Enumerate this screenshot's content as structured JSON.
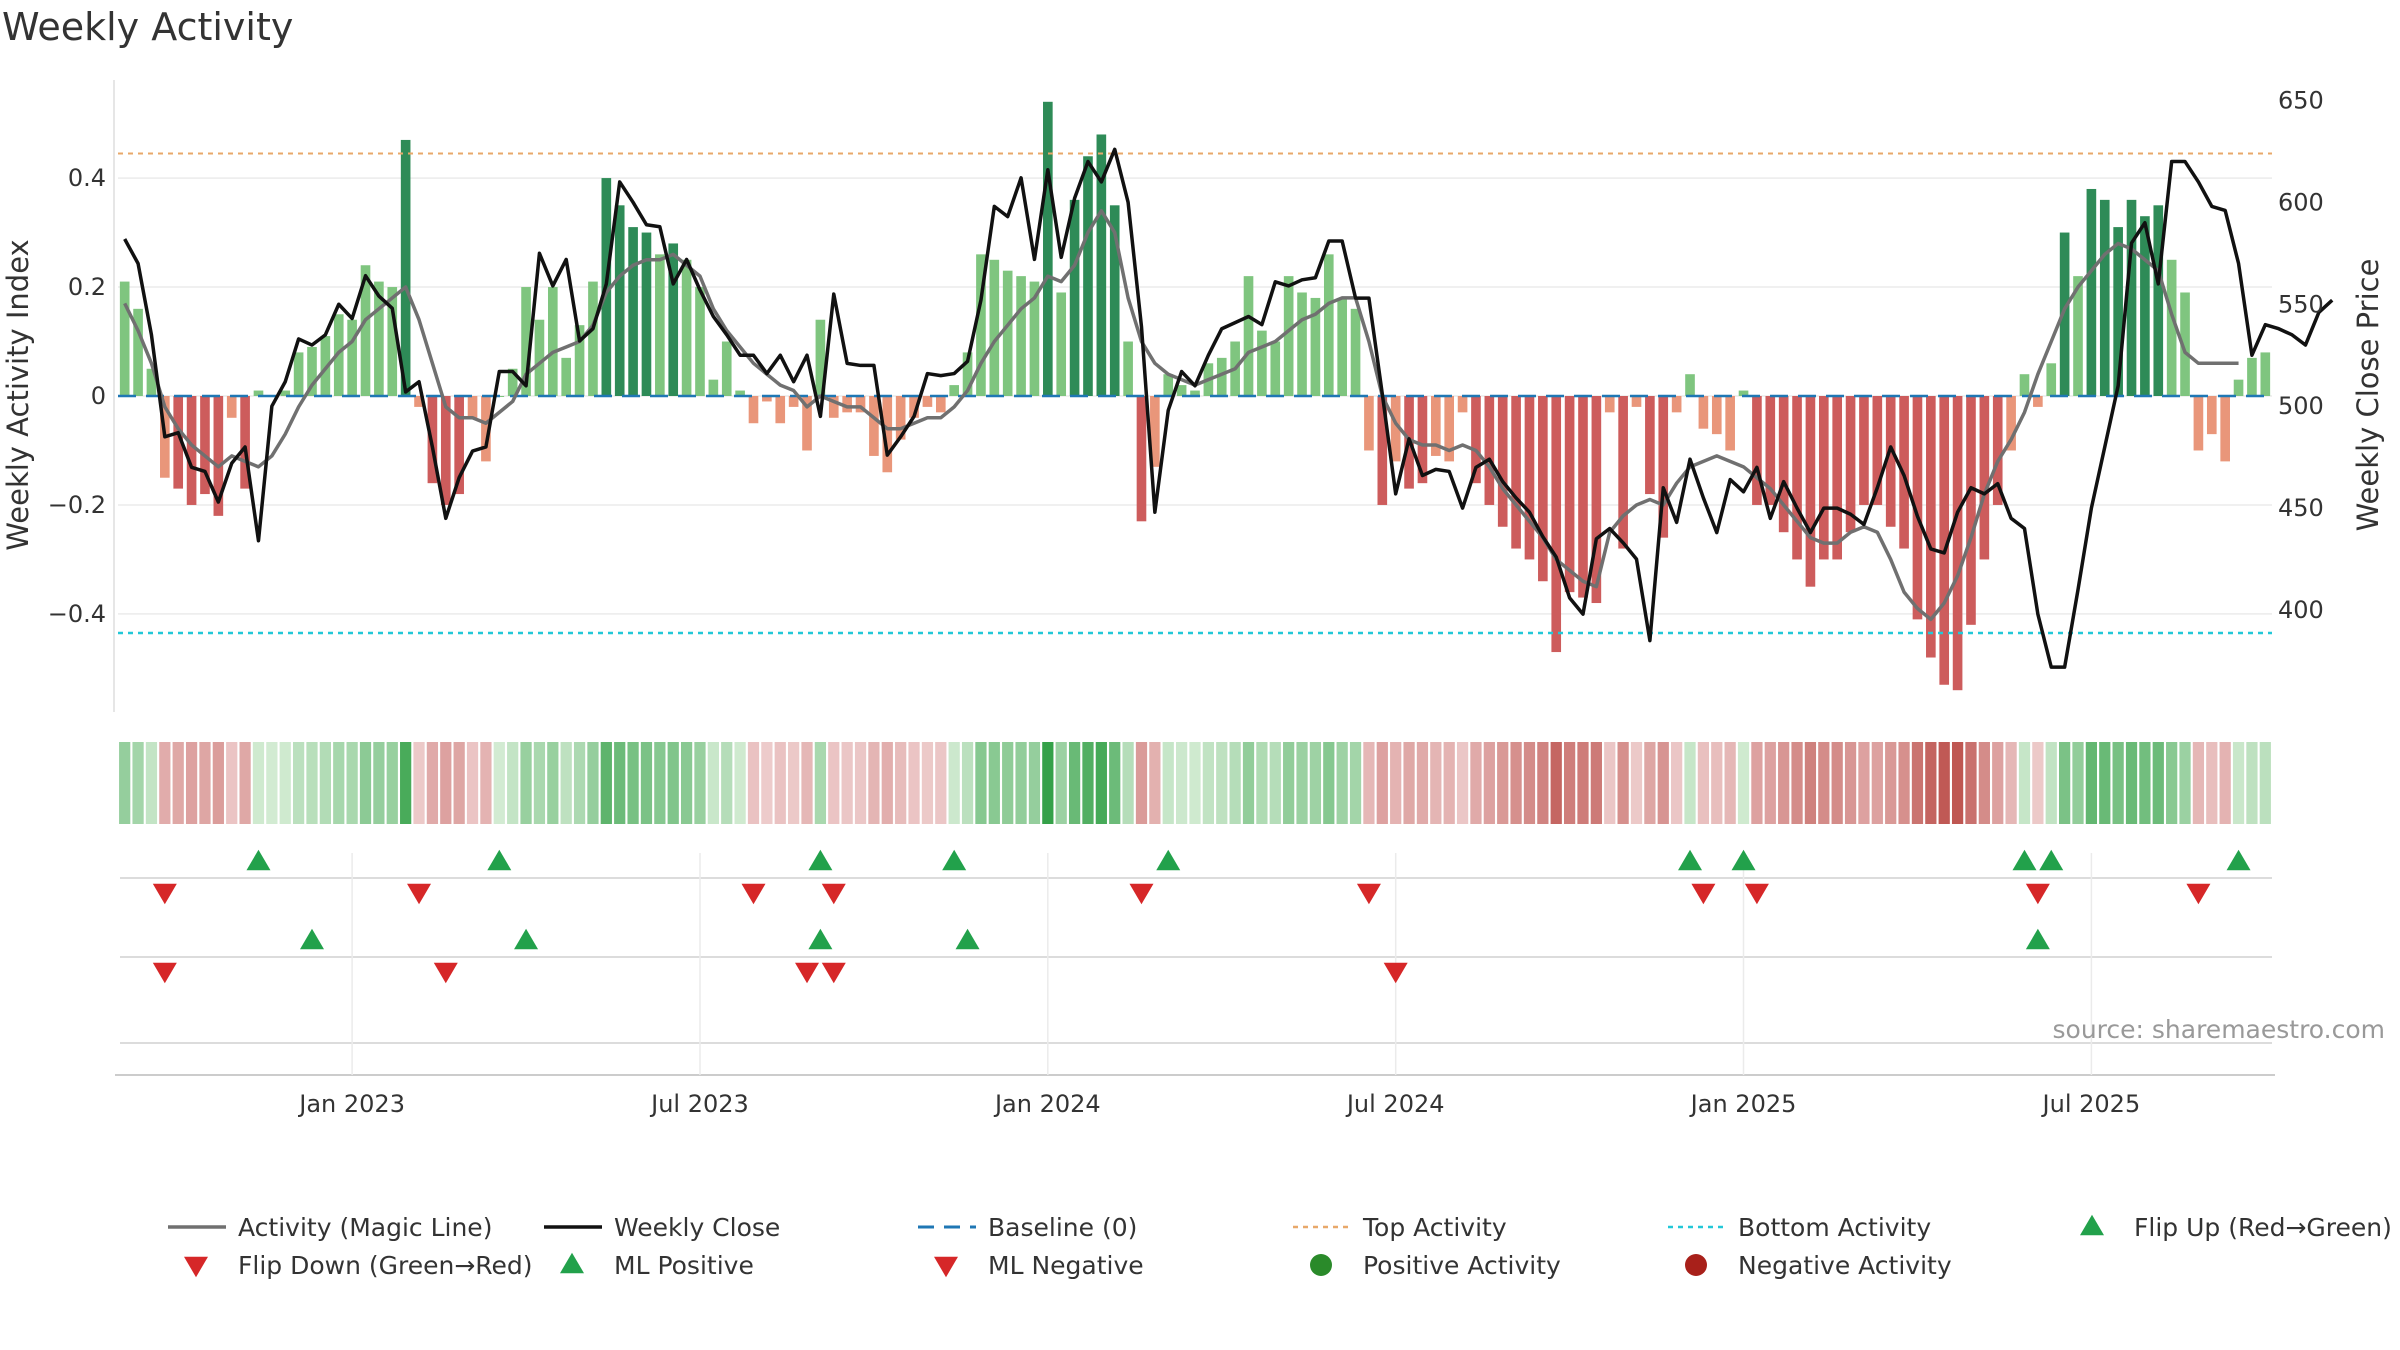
{
  "chart_data": {
    "type": "bar",
    "title": "Weekly Activity",
    "ylabel": "Weekly Activity Index",
    "y2label": "Weekly Close Price",
    "ylim": [
      -0.58,
      0.58
    ],
    "y2lim": [
      350,
      660
    ],
    "yticks": [
      0.4,
      0.2,
      0,
      -0.2,
      -0.4
    ],
    "ytick_labels": [
      "0.4",
      "0.2",
      "0",
      "−0.2",
      "−0.4"
    ],
    "y2ticks": [
      650,
      600,
      550,
      500,
      450,
      400
    ],
    "y2tick_labels": [
      "650",
      "600",
      "550",
      "500",
      "450",
      "400"
    ],
    "xtick_labels": [
      "Jan 2023",
      "Jul 2023",
      "Jan 2024",
      "Jul 2024",
      "Jan 2025",
      "Jul 2025"
    ],
    "xtick_weeks": [
      17,
      43,
      69,
      95,
      121,
      147
    ],
    "top_activity": 0.445,
    "bottom_activity": -0.435,
    "source": "source: sharemaestro.com",
    "weeks_start": "2022-09-05",
    "activity": [
      0.21,
      0.16,
      0.05,
      -0.15,
      -0.17,
      -0.2,
      -0.18,
      -0.22,
      -0.04,
      -0.17,
      0.01,
      0,
      0.01,
      0.08,
      0.09,
      0.11,
      0.15,
      0.14,
      0.24,
      0.21,
      0.2,
      0.47,
      -0.02,
      -0.16,
      -0.2,
      -0.18,
      -0.04,
      -0.12,
      0,
      0.05,
      0.2,
      0.14,
      0.2,
      0.07,
      0.13,
      0.21,
      0.4,
      0.35,
      0.31,
      0.3,
      0.26,
      0.28,
      0.25,
      0.2,
      0.03,
      0.1,
      0.01,
      -0.05,
      -0.01,
      -0.05,
      -0.02,
      -0.1,
      0.14,
      -0.04,
      -0.03,
      -0.03,
      -0.11,
      -0.14,
      -0.08,
      -0.04,
      -0.02,
      -0.03,
      0.02,
      0.08,
      0.26,
      0.25,
      0.23,
      0.22,
      0.21,
      0.54,
      0.19,
      0.36,
      0.44,
      0.48,
      0.35,
      0.1,
      -0.23,
      -0.13,
      0.04,
      0.02,
      0.01,
      0.06,
      0.07,
      0.1,
      0.22,
      0.12,
      0.1,
      0.22,
      0.19,
      0.18,
      0.26,
      0.18,
      0.16,
      -0.1,
      -0.2,
      -0.12,
      -0.17,
      -0.16,
      -0.11,
      -0.12,
      -0.03,
      -0.16,
      -0.2,
      -0.24,
      -0.28,
      -0.3,
      -0.34,
      -0.47,
      -0.36,
      -0.37,
      -0.38,
      -0.03,
      -0.28,
      -0.02,
      -0.18,
      -0.26,
      -0.03,
      0.04,
      -0.06,
      -0.07,
      -0.1,
      0.01,
      -0.2,
      -0.2,
      -0.25,
      -0.3,
      -0.35,
      -0.3,
      -0.3,
      -0.25,
      -0.2,
      -0.2,
      -0.24,
      -0.28,
      -0.41,
      -0.48,
      -0.53,
      -0.54,
      -0.42,
      -0.3,
      -0.2,
      -0.1,
      0.04,
      -0.02,
      0.06,
      0.3,
      0.22,
      0.38,
      0.36,
      0.31,
      0.36,
      0.33,
      0.35,
      0.25,
      0.19,
      -0.1,
      -0.07,
      -0.12,
      0.03,
      0.07,
      0.08
    ],
    "magic_line": [
      0.17,
      0.12,
      0.06,
      -0.02,
      -0.06,
      -0.09,
      -0.11,
      -0.13,
      -0.11,
      -0.12,
      -0.13,
      -0.11,
      -0.07,
      -0.02,
      0.02,
      0.05,
      0.08,
      0.1,
      0.14,
      0.16,
      0.18,
      0.2,
      0.14,
      0.06,
      -0.02,
      -0.04,
      -0.04,
      -0.05,
      -0.03,
      -0.01,
      0.04,
      0.06,
      0.08,
      0.09,
      0.1,
      0.13,
      0.19,
      0.22,
      0.24,
      0.25,
      0.25,
      0.26,
      0.24,
      0.22,
      0.16,
      0.12,
      0.09,
      0.06,
      0.04,
      0.02,
      0.01,
      -0.02,
      0,
      -0.01,
      -0.02,
      -0.02,
      -0.04,
      -0.06,
      -0.06,
      -0.05,
      -0.04,
      -0.04,
      -0.02,
      0.01,
      0.06,
      0.1,
      0.13,
      0.16,
      0.18,
      0.22,
      0.21,
      0.24,
      0.3,
      0.34,
      0.3,
      0.18,
      0.1,
      0.06,
      0.04,
      0.03,
      0.02,
      0.03,
      0.04,
      0.05,
      0.08,
      0.09,
      0.1,
      0.12,
      0.14,
      0.15,
      0.17,
      0.18,
      0.18,
      0.1,
      0,
      -0.05,
      -0.08,
      -0.09,
      -0.09,
      -0.1,
      -0.09,
      -0.1,
      -0.13,
      -0.17,
      -0.2,
      -0.23,
      -0.26,
      -0.3,
      -0.32,
      -0.34,
      -0.35,
      -0.25,
      -0.22,
      -0.2,
      -0.19,
      -0.2,
      -0.16,
      -0.13,
      -0.12,
      -0.11,
      -0.12,
      -0.13,
      -0.15,
      -0.17,
      -0.2,
      -0.23,
      -0.26,
      -0.27,
      -0.27,
      -0.25,
      -0.24,
      -0.25,
      -0.3,
      -0.36,
      -0.39,
      -0.41,
      -0.38,
      -0.33,
      -0.26,
      -0.18,
      -0.12,
      -0.08,
      -0.03,
      0.04,
      0.1,
      0.16,
      0.2,
      0.23,
      0.26,
      0.28,
      0.27,
      0.25,
      0.23,
      0.15,
      0.08,
      0.06,
      0.06,
      0.06,
      0.06
    ],
    "close": [
      582,
      570,
      535,
      485,
      487,
      470,
      468,
      453,
      472,
      480,
      434,
      500,
      512,
      533,
      530,
      535,
      550,
      543,
      564,
      554,
      548,
      507,
      512,
      480,
      445,
      465,
      478,
      480,
      517,
      517,
      510,
      575,
      559,
      572,
      532,
      538,
      560,
      610,
      600,
      589,
      588,
      560,
      572,
      557,
      544,
      535,
      525,
      525,
      516,
      525,
      512,
      525,
      495,
      555,
      521,
      520,
      520,
      476,
      485,
      495,
      516,
      515,
      516,
      522,
      552,
      598,
      593,
      612,
      572,
      616,
      573,
      602,
      620,
      610,
      626,
      600,
      539,
      448,
      498,
      517,
      510,
      525,
      538,
      541,
      544,
      540,
      561,
      559,
      562,
      563,
      581,
      581,
      553,
      553,
      506,
      457,
      484,
      466,
      469,
      468,
      450,
      470,
      474,
      463,
      455,
      448,
      436,
      426,
      406,
      398,
      435,
      440,
      433,
      425,
      385,
      460,
      443,
      474,
      455,
      438,
      464,
      458,
      470,
      445,
      463,
      450,
      438,
      450,
      450,
      447,
      442,
      460,
      480,
      466,
      446,
      430,
      428,
      448,
      460,
      457,
      462,
      445,
      440,
      398,
      372,
      372,
      410,
      450,
      480,
      510,
      580,
      590,
      560,
      620,
      620,
      610,
      598,
      596,
      570,
      525,
      540,
      538,
      535,
      530,
      546,
      552
    ]
  },
  "legend": [
    {
      "label": "Activity (Magic Line)",
      "marker": "line",
      "color": "#707070"
    },
    {
      "label": "Flip Down (Green→Red)",
      "marker": "triangle-down",
      "color": "#d62728"
    },
    {
      "label": "Weekly Close",
      "marker": "line",
      "color": "#111111"
    },
    {
      "label": "ML Positive",
      "marker": "triangle-up",
      "color": "#22a14b"
    },
    {
      "label": "Baseline (0)",
      "marker": "dashed",
      "color": "#1f77b4"
    },
    {
      "label": "ML Negative",
      "marker": "triangle-down",
      "color": "#d62728"
    },
    {
      "label": "Top Activity",
      "marker": "dotted",
      "color": "#e8a86a"
    },
    {
      "label": "Positive Activity",
      "marker": "circle",
      "color": "#2a8a2a"
    },
    {
      "label": "Bottom Activity",
      "marker": "dotted",
      "color": "#22c8d8"
    },
    {
      "label": "Negative Activity",
      "marker": "circle",
      "color": "#a8201a"
    },
    {
      "label": "Flip Up (Red→Green)",
      "marker": "triangle-up",
      "color": "#22a14b"
    }
  ]
}
